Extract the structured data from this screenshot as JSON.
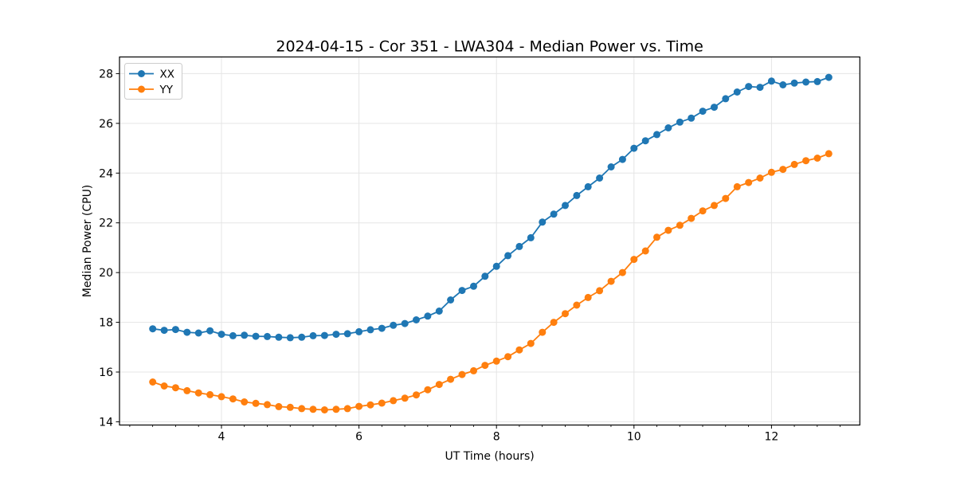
{
  "chart_data": {
    "type": "line",
    "title": "2024-04-15 - Cor 351 - LWA304 - Median Power vs. Time",
    "xlabel": "UT Time (hours)",
    "ylabel": "Median Power (CPU)",
    "xlim": [
      2.517,
      13.285
    ],
    "ylim": [
      13.87,
      28.67
    ],
    "xticks": [
      4,
      6,
      8,
      10,
      12
    ],
    "yticks": [
      14,
      16,
      18,
      20,
      22,
      24,
      26,
      28
    ],
    "x_minor_tick_interval": 0.3333,
    "grid": true,
    "grid_color": "#e5e5e5",
    "legend_position": "upper-left",
    "marker": "circle",
    "x": [
      3.0,
      3.167,
      3.333,
      3.5,
      3.667,
      3.833,
      4.0,
      4.167,
      4.333,
      4.5,
      4.667,
      4.833,
      5.0,
      5.167,
      5.333,
      5.5,
      5.667,
      5.833,
      6.0,
      6.167,
      6.333,
      6.5,
      6.667,
      6.833,
      7.0,
      7.167,
      7.333,
      7.5,
      7.667,
      7.833,
      8.0,
      8.167,
      8.333,
      8.5,
      8.667,
      8.833,
      9.0,
      9.167,
      9.333,
      9.5,
      9.667,
      9.833,
      10.0,
      10.167,
      10.333,
      10.5,
      10.667,
      10.833,
      11.0,
      11.167,
      11.333,
      11.5,
      11.667,
      11.833,
      12.0,
      12.167,
      12.333,
      12.5,
      12.667,
      12.833
    ],
    "series": [
      {
        "name": "XX",
        "color": "#1f77b4",
        "values": [
          17.74,
          17.68,
          17.71,
          17.6,
          17.57,
          17.66,
          17.52,
          17.46,
          17.48,
          17.44,
          17.43,
          17.4,
          17.38,
          17.4,
          17.46,
          17.47,
          17.52,
          17.54,
          17.62,
          17.7,
          17.76,
          17.88,
          17.95,
          18.1,
          18.25,
          18.45,
          18.9,
          19.28,
          19.45,
          19.85,
          20.25,
          20.68,
          21.05,
          21.4,
          22.03,
          22.35,
          22.7,
          23.1,
          23.45,
          23.8,
          24.25,
          24.55,
          25.0,
          25.3,
          25.55,
          25.82,
          26.05,
          26.21,
          26.49,
          26.65,
          26.99,
          27.26,
          27.48,
          27.45,
          27.7,
          27.55,
          27.62,
          27.66,
          27.68,
          27.85
        ]
      },
      {
        "name": "YY",
        "color": "#ff7f0e",
        "values": [
          15.6,
          15.44,
          15.37,
          15.25,
          15.16,
          15.09,
          15.01,
          14.92,
          14.8,
          14.74,
          14.69,
          14.61,
          14.58,
          14.53,
          14.5,
          14.48,
          14.5,
          14.53,
          14.62,
          14.68,
          14.75,
          14.85,
          14.95,
          15.08,
          15.29,
          15.5,
          15.71,
          15.9,
          16.05,
          16.27,
          16.44,
          16.62,
          16.89,
          17.15,
          17.6,
          18.0,
          18.35,
          18.69,
          19.0,
          19.27,
          19.65,
          20.0,
          20.53,
          20.87,
          21.42,
          21.7,
          21.9,
          22.18,
          22.48,
          22.7,
          22.98,
          23.45,
          23.62,
          23.8,
          24.03,
          24.15,
          24.35,
          24.5,
          24.6,
          24.78
        ]
      }
    ]
  }
}
